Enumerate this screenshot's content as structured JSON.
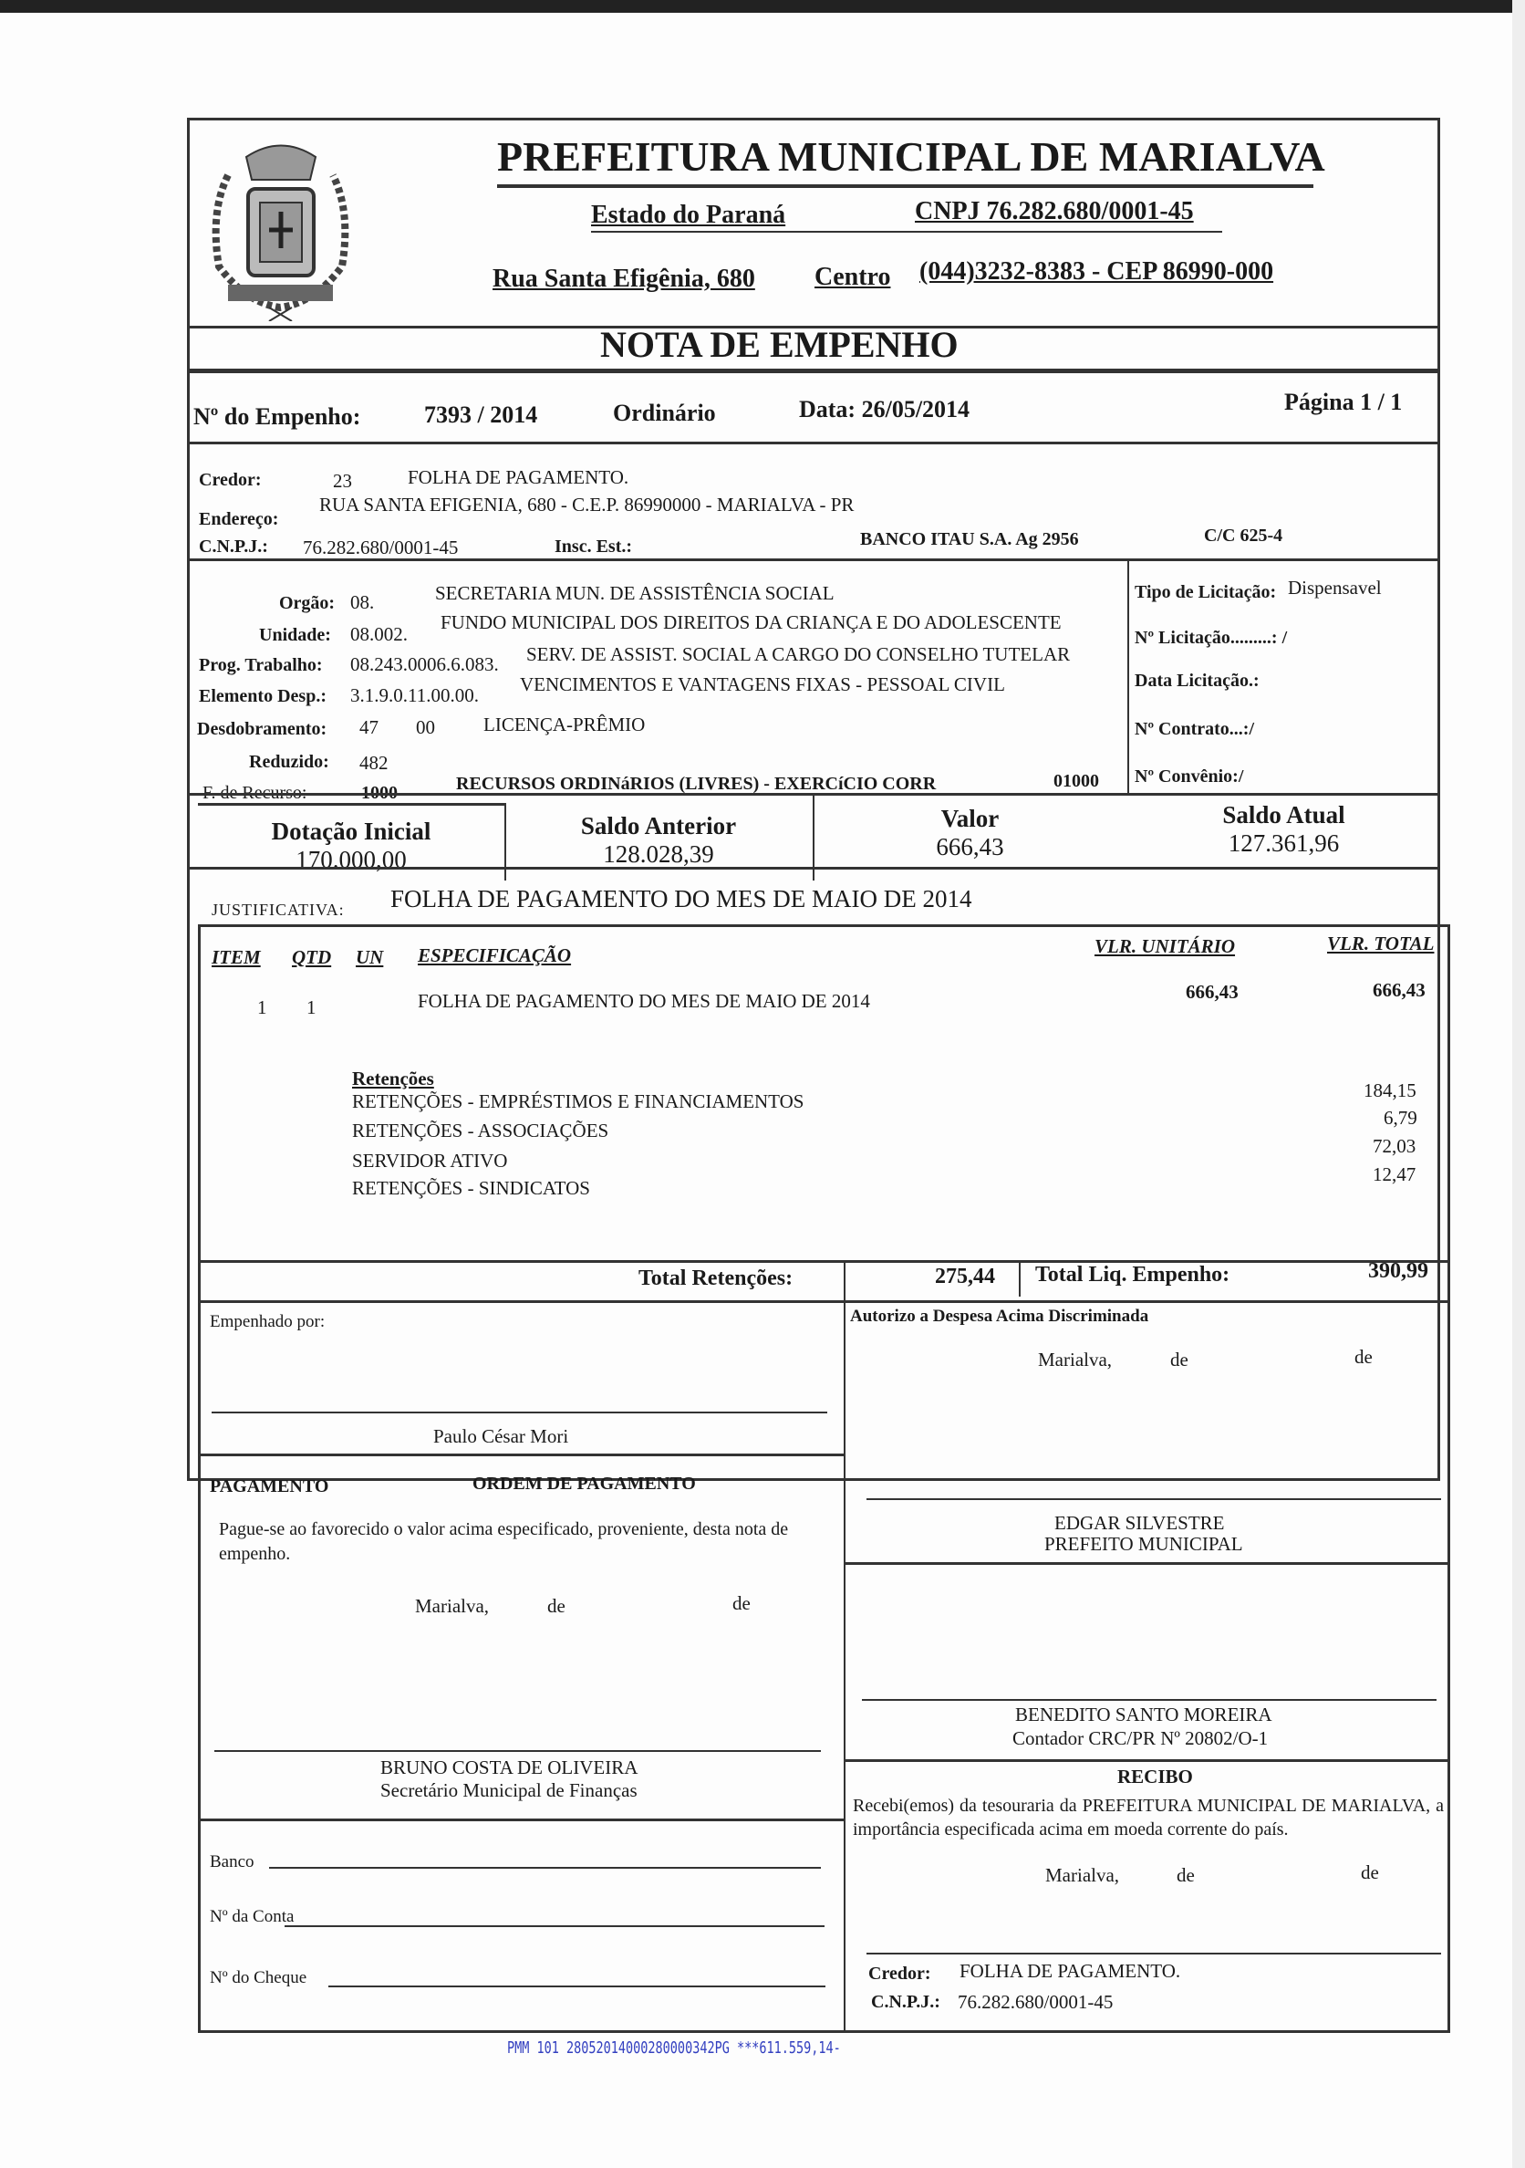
{
  "header": {
    "title": "PREFEITURA MUNICIPAL DE MARIALVA",
    "state": "Estado do Paraná",
    "cnpj": "CNPJ 76.282.680/0001-45",
    "address": "Rua Santa Efigênia, 680",
    "district": "Centro",
    "phone_cep": "(044)3232-8383  -  CEP 86990-000",
    "doc_title": "NOTA  DE  EMPENHO",
    "crest_text": "MARIALVA"
  },
  "empenho": {
    "numero_label": "Nº do Empenho:",
    "numero": "7393 / 2014",
    "tipo": "Ordinário",
    "data": "Data: 26/05/2014",
    "pagina": "Página  1 / 1"
  },
  "credor": {
    "credor_label": "Credor:",
    "codigo": "23",
    "nome": "FOLHA DE PAGAMENTO.",
    "endereco_label": "Endereço:",
    "endereco": "RUA SANTA EFIGENIA, 680  -  C.E.P. 86990000  -  MARIALVA  -  PR",
    "cnpj_label": "C.N.P.J.:",
    "cnpj": "76.282.680/0001-45",
    "insc_label": "Insc. Est.:",
    "banco": "BANCO ITAU S.A.  Ag   2956",
    "cc": "C/C    625-4"
  },
  "dotacao": {
    "orgao_label": "Orgão:",
    "orgao_code": "08.",
    "orgao": "SECRETARIA MUN. DE ASSISTÊNCIA SOCIAL",
    "unidade_label": "Unidade:",
    "unidade_code": "08.002.",
    "unidade": "FUNDO MUNICIPAL DOS DIREITOS DA CRIANÇA E DO ADOLESCENTE",
    "prog_label": "Prog. Trabalho:",
    "prog_code": "08.243.0006.6.083.",
    "prog": "SERV. DE ASSIST. SOCIAL A CARGO DO CONSELHO TUTELAR",
    "elem_label": "Elemento Desp.:",
    "elem_code": "3.1.9.0.11.00.00.",
    "elem": "VENCIMENTOS E VANTAGENS FIXAS - PESSOAL CIVIL",
    "desd_label": "Desdobramento:",
    "desd_code": "47",
    "desd_sub": "00",
    "desd": "LICENÇA-PRÊMIO",
    "reduz_label": "Reduzido:",
    "reduz": "482",
    "recurso_label": "F. de Recurso:",
    "recurso_code": "1000",
    "recurso": "RECURSOS ORDINáRIOS (LIVRES) - EXERCíCIO CORR",
    "recurso_num": "01000"
  },
  "licitacao": {
    "tipo": "Tipo de Licitação:",
    "tipo_value": "Dispensavel",
    "numero": "Nº Licitação.........: /",
    "data": "Data Licitação.:",
    "contrato": "Nº Contrato...:/",
    "convenio": "Nº Convênio:/"
  },
  "saldos": [
    {
      "label": "Dotação Inicial",
      "value": "170.000,00"
    },
    {
      "label": "Saldo Anterior",
      "value": "128.028,39"
    },
    {
      "label": "Valor",
      "value": "666,43"
    },
    {
      "label": "Saldo Atual",
      "value": "127.361,96"
    }
  ],
  "justificativa": {
    "label": "JUSTIFICATIVA:",
    "text": "FOLHA DE PAGAMENTO DO MES DE MAIO DE 2014"
  },
  "items": {
    "headers": {
      "item": "ITEM",
      "qtd": "QTD",
      "un": "UN",
      "espec": "ESPECIFICAÇÃO",
      "unit": "VLR. UNITÁRIO",
      "total": "VLR. TOTAL"
    },
    "rows": [
      {
        "item": "1",
        "qtd": "1",
        "un": "",
        "espec": "FOLHA DE PAGAMENTO DO MES DE MAIO DE 2014",
        "unit": "666,43",
        "total": "666,43"
      }
    ]
  },
  "retencoes": {
    "title": "Retenções",
    "items": [
      {
        "label": "RETENÇÕES - EMPRÉSTIMOS E FINANCIAMENTOS",
        "value": "184,15"
      },
      {
        "label": "RETENÇÕES - ASSOCIAÇÕES",
        "value": "6,79"
      },
      {
        "label": "SERVIDOR ATIVO",
        "value": "72,03"
      },
      {
        "label": "RETENÇÕES - SINDICATOS",
        "value": "12,47"
      }
    ],
    "total_label": "Total Retenções:",
    "total": "275,44",
    "liq_label": "Total Liq. Empenho:",
    "liq": "390,99"
  },
  "assinaturas": {
    "empenhado_label": "Empenhado por:",
    "empenhado_nome": "Paulo César Mori",
    "autorizo": "Autorizo a Despesa Acima Discriminada",
    "marialva": "Marialva,",
    "de": "de",
    "ponto": ".",
    "prefeito_nome": "EDGAR SILVESTRE",
    "prefeito_cargo": "PREFEITO MUNICIPAL",
    "pagamento": "PAGAMENTO",
    "ordem": "ORDEM DE PAGAMENTO",
    "pague": "Pague-se ao favorecido o valor acima especificado, proveniente, desta nota de empenho.",
    "contador_nome": "BENEDITO SANTO MOREIRA",
    "contador_cargo": "Contador CRC/PR Nº 20802/O-1",
    "secretario_nome": "BRUNO COSTA DE OLIVEIRA",
    "secretario_cargo": "Secretário Municipal de Finanças",
    "recibo": "RECIBO",
    "recibo_text": "Recebi(emos) da tesouraria da PREFEITURA MUNICIPAL DE MARIALVA, a importância especificada acima em moeda corrente do país.",
    "banco": "Banco",
    "conta": "Nº da Conta",
    "cheque": "Nº do Cheque",
    "credor_label": "Credor:",
    "credor": "FOLHA DE PAGAMENTO.",
    "cnpj_label": "C.N.P.J.:",
    "cnpj": "76.282.680/0001-45"
  },
  "stamp": "PMM 101 28052014000280000342PG ***611.559,14-",
  "colors": {
    "ink": "#1a1a1a",
    "stamp": "#3340c0"
  }
}
